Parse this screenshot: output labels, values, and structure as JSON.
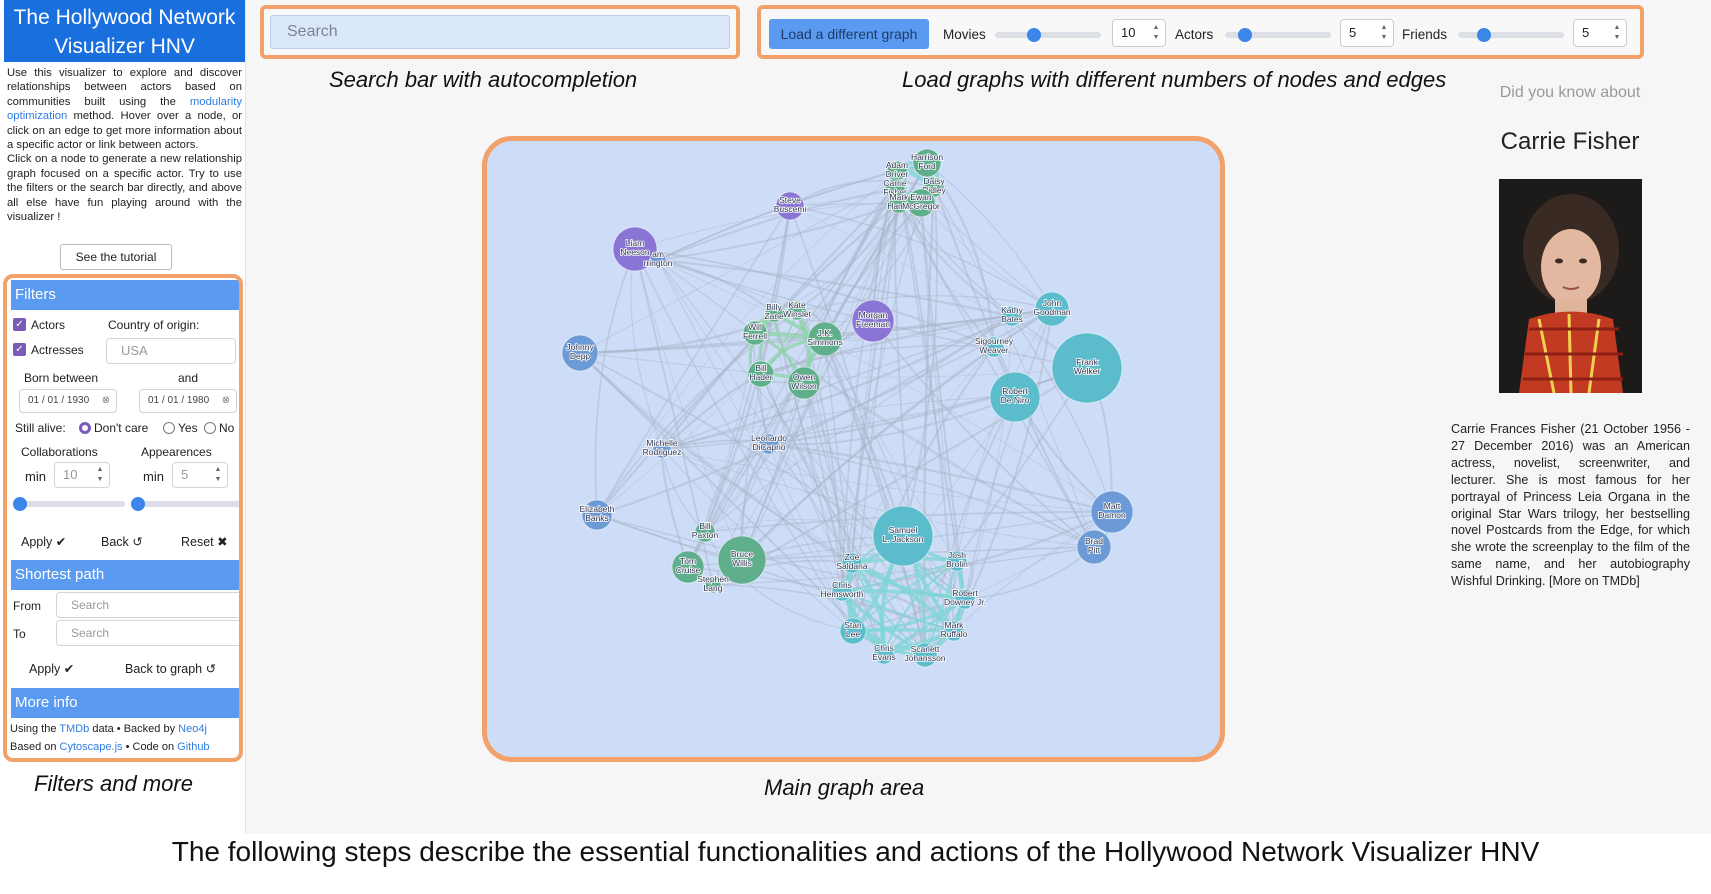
{
  "app": {
    "title": "The Hollywood Network Visualizer HNV",
    "intro_a": "Use this visualizer to explore and discover relationships between actors based on communities built using the ",
    "intro_link": "modularity optimization",
    "intro_b": " method. Hover over a node, or click on an edge to get more information about a specific actor or link between actors.",
    "intro_c": "Click on a node to generate a new relationship graph focused on a specific actor. Try to use the filters or the search bar directly, and above all else have fun playing around with the visualizer !",
    "tutorial_label": "See the tutorial"
  },
  "filters": {
    "header": "Filters",
    "actors_label": "Actors",
    "actresses_label": "Actresses",
    "country_label": "Country of origin:",
    "country_placeholder": "USA",
    "born_label": "Born between",
    "and_label": "and",
    "born_from": "01 / 01 / 1930",
    "born_to": "01 / 01 / 1980",
    "alive_label": "Still alive:",
    "alive_options": [
      "Don't care",
      "Yes",
      "No"
    ],
    "alive_selected": "Don't care",
    "collab_label": "Collaborations",
    "appear_label": "Appearences",
    "min_label": "min",
    "collab_min": "10",
    "appear_min": "5",
    "apply_label": "Apply ✔",
    "back_label": "Back ↺",
    "reset_label": "Reset ✖"
  },
  "shortest_path": {
    "header": "Shortest path",
    "from_label": "From",
    "to_label": "To",
    "from_placeholder": "Search",
    "to_placeholder": "Search",
    "apply_label": "Apply ✔",
    "back_label": "Back to graph ↺"
  },
  "more_info": {
    "header": "More info",
    "l1a": "Using the ",
    "l1b": "TMDb",
    "l1c": " data • Backed by ",
    "l1d": "Neo4j",
    "l2a": "Based on ",
    "l2b": "Cytoscape.js",
    "l2c": " • Code on ",
    "l2d": "Github"
  },
  "topbar": {
    "search_placeholder": "Search",
    "load_label": "Load a different graph",
    "movies_label": "Movies",
    "movies_value": "10",
    "actors_label": "Actors",
    "actors_value": "5",
    "friends_label": "Friends",
    "friends_value": "5"
  },
  "captions": {
    "search": "Search bar with autocompletion",
    "load": "Load graphs with different numbers of nodes and edges",
    "filters": "Filters and more",
    "graph": "Main graph area"
  },
  "right_panel": {
    "did_you_know": "Did you know about",
    "name": "Carrie Fisher",
    "bio": "Carrie Frances Fisher (21 October 1956 - 27 December 2016) was an American actress, novelist, screenwriter, and lecturer. She is most famous for her portrayal of Princess Leia Organa in the original Star Wars trilogy, her bestselling novel Postcards from the Edge, for which she wrote the screenplay to the film of the same name, and her autobiography Wishful Drinking. [More on TMDb]"
  },
  "bottom_text": "The following steps describe the essential functionalities and actions of the Hollywood Network Visualizer HNV",
  "colors": {
    "accent": "#f2a16a",
    "header_blue": "#1a6fdf",
    "section_blue": "#5a9af0",
    "graph_bg": "#cddcf7",
    "community_purple": "#8a74d6",
    "community_green": "#5fae8c",
    "community_teal": "#5bbccc",
    "community_blue": "#6b9ad6"
  },
  "graph": {
    "nodes": [
      {
        "id": "harrison",
        "label": "Harrison\nFord",
        "c": "green"
      },
      {
        "id": "adam",
        "label": "Adam\nDriver",
        "c": "green"
      },
      {
        "id": "daisy",
        "label": "Daisy\nRidley",
        "c": "green"
      },
      {
        "id": "carrie",
        "label": "Carrie\nFisher",
        "c": "green"
      },
      {
        "id": "mark",
        "label": "Mark\nHamill",
        "c": "green"
      },
      {
        "id": "ewan",
        "label": "Ewan\nMcGregor",
        "c": "green"
      },
      {
        "id": "steve",
        "label": "Steve\nBuscemi",
        "c": "purple"
      },
      {
        "id": "liam",
        "label": "Liam\nNeeson",
        "c": "purple"
      },
      {
        "id": "harrington",
        "label": "am\nrrington",
        "c": "blue"
      },
      {
        "id": "johnny",
        "label": "Johnny\nDepp",
        "c": "blue"
      },
      {
        "id": "billy",
        "label": "Billy\nZane",
        "c": "green"
      },
      {
        "id": "kate",
        "label": "Kate\nWinslet",
        "c": "green"
      },
      {
        "id": "will",
        "label": "Will\nFerrell",
        "c": "green"
      },
      {
        "id": "jk",
        "label": "J.K.\nSimmons",
        "c": "green"
      },
      {
        "id": "morgan",
        "label": "Morgan\nFreeman",
        "c": "purple"
      },
      {
        "id": "bill_h",
        "label": "Bill\nHader",
        "c": "green"
      },
      {
        "id": "owen",
        "label": "Owen\nWilson",
        "c": "green"
      },
      {
        "id": "kathy",
        "label": "Kathy\nBates",
        "c": "teal"
      },
      {
        "id": "john_g",
        "label": "John\nGoodman",
        "c": "teal"
      },
      {
        "id": "sigourney",
        "label": "Sigourney\nWeaver",
        "c": "teal"
      },
      {
        "id": "frank",
        "label": "Frank\nWelker",
        "c": "teal"
      },
      {
        "id": "deniro",
        "label": "Robert\nDe Niro",
        "c": "teal"
      },
      {
        "id": "michelle",
        "label": "Michelle\nRodriguez",
        "c": "blue"
      },
      {
        "id": "leo",
        "label": "Leonardo\nDiCaprio",
        "c": "blue"
      },
      {
        "id": "elizabeth",
        "label": "Elizabeth\nBanks",
        "c": "blue"
      },
      {
        "id": "bill_p",
        "label": "Bill\nPaxton",
        "c": "green"
      },
      {
        "id": "bruce",
        "label": "Bruce\nWillis",
        "c": "green"
      },
      {
        "id": "tom",
        "label": "Tom\nCruise",
        "c": "green"
      },
      {
        "id": "stephen",
        "label": "Stephen\nLang",
        "c": "green"
      },
      {
        "id": "samuel",
        "label": "Samuel\nL. Jackson",
        "c": "teal"
      },
      {
        "id": "zoe",
        "label": "Zoe\nSaldana",
        "c": "teal"
      },
      {
        "id": "josh",
        "label": "Josh\nBrolin",
        "c": "teal"
      },
      {
        "id": "chris_h",
        "label": "Chris\nHemsworth",
        "c": "teal"
      },
      {
        "id": "rdj",
        "label": "Robert\nDowney Jr.",
        "c": "teal"
      },
      {
        "id": "stan",
        "label": "Stan\nLee",
        "c": "teal"
      },
      {
        "id": "ruffalo",
        "label": "Mark\nRuffalo",
        "c": "teal"
      },
      {
        "id": "chris_e",
        "label": "Chris\nEvans",
        "c": "teal"
      },
      {
        "id": "scarlett",
        "label": "Scarlett\nJohansson",
        "c": "teal"
      },
      {
        "id": "matt",
        "label": "Matt\nDamon",
        "c": "blue"
      },
      {
        "id": "brad",
        "label": "Brad\nPitt",
        "c": "blue"
      }
    ]
  }
}
